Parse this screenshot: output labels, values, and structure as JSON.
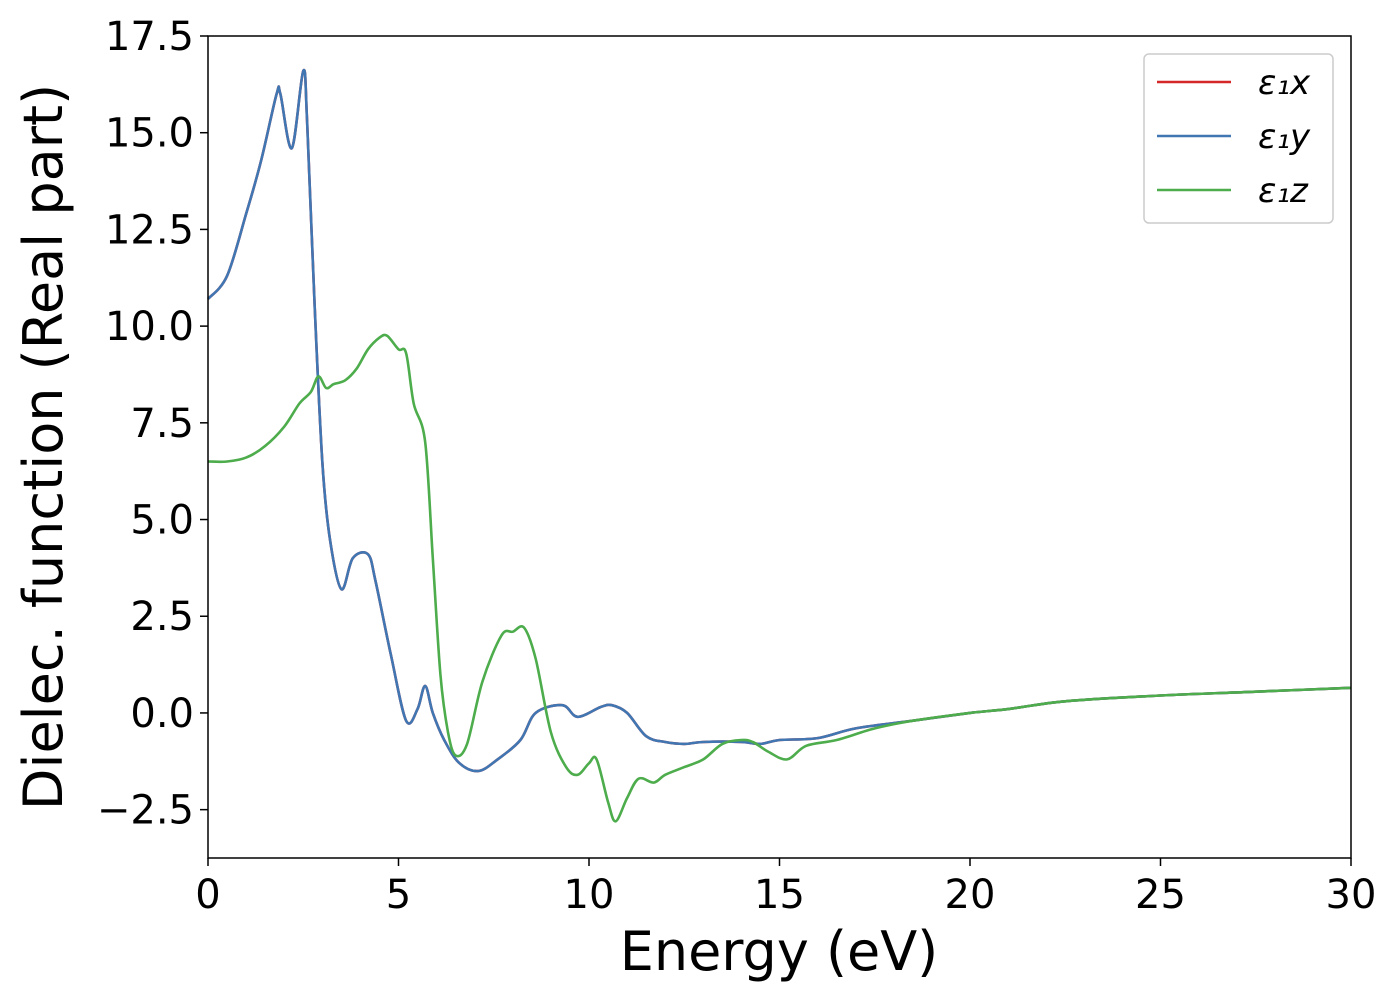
{
  "chart_data": {
    "type": "line",
    "title": "",
    "xlabel": "Energy (eV)",
    "ylabel": "Dielec. function (Real part)",
    "xlim": [
      0,
      30
    ],
    "ylim": [
      -3.75,
      17.5
    ],
    "xticks": [
      0,
      5,
      10,
      15,
      20,
      25,
      30
    ],
    "xtick_labels": [
      "0",
      "5",
      "10",
      "15",
      "20",
      "25",
      "30"
    ],
    "yticks": [
      -2.5,
      0.0,
      2.5,
      5.0,
      7.5,
      10.0,
      12.5,
      15.0,
      17.5
    ],
    "ytick_labels": [
      "−2.5",
      "0.0",
      "2.5",
      "5.0",
      "7.5",
      "10.0",
      "12.5",
      "15.0",
      "17.5"
    ],
    "grid": false,
    "legend": "top-right",
    "series": [
      {
        "name": "ε₁x",
        "color": "#d62728",
        "x": [
          0,
          0.5,
          1.0,
          1.4,
          1.8,
          1.9,
          2.2,
          2.5,
          2.6,
          2.8,
          3.0,
          3.2,
          3.5,
          3.8,
          4.2,
          4.4,
          4.8,
          5.2,
          5.5,
          5.7,
          5.9,
          6.2,
          6.6,
          7.1,
          7.6,
          8.2,
          8.6,
          9.3,
          9.7,
          10.3,
          10.6,
          11.0,
          11.5,
          12.0,
          12.5,
          13.0,
          14.0,
          14.5,
          15.0,
          16.0,
          17.0,
          18.5,
          20.0,
          21.0,
          22.5,
          25.0,
          27.5,
          30.0
        ],
        "y": [
          10.7,
          11.3,
          12.9,
          14.3,
          16.0,
          16.0,
          14.6,
          16.6,
          15.3,
          10.5,
          6.5,
          4.5,
          3.2,
          4.0,
          4.1,
          3.4,
          1.5,
          -0.2,
          0.1,
          0.7,
          0.0,
          -0.7,
          -1.3,
          -1.5,
          -1.2,
          -0.7,
          0.0,
          0.2,
          -0.1,
          0.15,
          0.2,
          0.0,
          -0.6,
          -0.75,
          -0.8,
          -0.75,
          -0.75,
          -0.8,
          -0.7,
          -0.65,
          -0.4,
          -0.2,
          0.0,
          0.1,
          0.3,
          0.45,
          0.55,
          0.65
        ]
      },
      {
        "name": "ε₁y",
        "color": "#4077b3",
        "x": [
          0,
          0.5,
          1.0,
          1.4,
          1.8,
          1.9,
          2.2,
          2.5,
          2.6,
          2.8,
          3.0,
          3.2,
          3.5,
          3.8,
          4.2,
          4.4,
          4.8,
          5.2,
          5.5,
          5.7,
          5.9,
          6.2,
          6.6,
          7.1,
          7.6,
          8.2,
          8.6,
          9.3,
          9.7,
          10.3,
          10.6,
          11.0,
          11.5,
          12.0,
          12.5,
          13.0,
          14.0,
          14.5,
          15.0,
          16.0,
          17.0,
          18.5,
          20.0,
          21.0,
          22.5,
          25.0,
          27.5,
          30.0
        ],
        "y": [
          10.7,
          11.3,
          12.9,
          14.3,
          16.0,
          16.0,
          14.6,
          16.6,
          15.3,
          10.5,
          6.5,
          4.5,
          3.2,
          4.0,
          4.1,
          3.4,
          1.5,
          -0.2,
          0.1,
          0.7,
          0.0,
          -0.7,
          -1.3,
          -1.5,
          -1.2,
          -0.7,
          0.0,
          0.2,
          -0.1,
          0.15,
          0.2,
          0.0,
          -0.6,
          -0.75,
          -0.8,
          -0.75,
          -0.75,
          -0.8,
          -0.7,
          -0.65,
          -0.4,
          -0.2,
          0.0,
          0.1,
          0.3,
          0.45,
          0.55,
          0.65
        ]
      },
      {
        "name": "ε₁z",
        "color": "#4dac4b",
        "x": [
          0,
          0.5,
          1.0,
          1.5,
          2.0,
          2.4,
          2.7,
          2.9,
          3.1,
          3.3,
          3.6,
          3.9,
          4.2,
          4.5,
          4.7,
          5.0,
          5.2,
          5.4,
          5.7,
          5.9,
          6.1,
          6.3,
          6.5,
          6.8,
          7.2,
          7.7,
          8.0,
          8.3,
          8.6,
          9.0,
          9.4,
          9.7,
          10.0,
          10.2,
          10.5,
          10.7,
          11.0,
          11.3,
          11.7,
          12.0,
          12.5,
          13.0,
          13.5,
          14.0,
          14.3,
          14.7,
          15.2,
          15.7,
          16.5,
          17.5,
          18.5,
          20.0,
          21.0,
          22.5,
          25.0,
          27.5,
          30.0
        ],
        "y": [
          6.5,
          6.5,
          6.6,
          6.9,
          7.4,
          8.0,
          8.3,
          8.7,
          8.4,
          8.5,
          8.6,
          8.9,
          9.4,
          9.7,
          9.75,
          9.4,
          9.3,
          8.0,
          7.0,
          4.0,
          1.0,
          -0.5,
          -1.1,
          -0.8,
          0.8,
          2.0,
          2.1,
          2.2,
          1.4,
          -0.5,
          -1.4,
          -1.6,
          -1.3,
          -1.2,
          -2.3,
          -2.8,
          -2.2,
          -1.7,
          -1.8,
          -1.6,
          -1.4,
          -1.2,
          -0.8,
          -0.7,
          -0.75,
          -1.0,
          -1.2,
          -0.85,
          -0.7,
          -0.4,
          -0.2,
          0.0,
          0.1,
          0.3,
          0.45,
          0.55,
          0.65
        ]
      }
    ]
  }
}
